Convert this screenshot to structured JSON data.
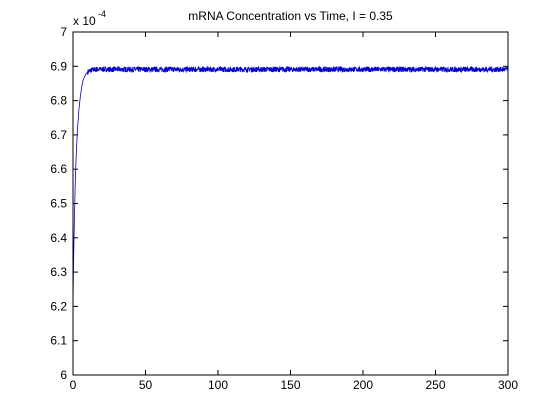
{
  "chart_data": {
    "type": "line",
    "title": "mRNA Concentration vs Time, I = 0.35",
    "xlabel": "",
    "ylabel": "",
    "xlim": [
      0,
      300
    ],
    "ylim": [
      6.0,
      7.0
    ],
    "y_multiplier": {
      "base": "x 10",
      "exponent": "-4"
    },
    "xticks": [
      0,
      50,
      100,
      150,
      200,
      250,
      300
    ],
    "yticks": [
      6,
      6.1,
      6.2,
      6.3,
      6.4,
      6.5,
      6.6,
      6.7,
      6.8,
      6.9,
      7
    ],
    "xtick_labels": [
      "0",
      "50",
      "100",
      "150",
      "200",
      "250",
      "300"
    ],
    "ytick_labels": [
      "6",
      "6.1",
      "6.2",
      "6.3",
      "6.4",
      "6.5",
      "6.6",
      "6.7",
      "6.8",
      "6.9",
      "7"
    ],
    "grid": false,
    "color": "#0000cc",
    "series": [
      {
        "x": [
          0,
          0.3,
          0.6,
          1,
          1.5,
          2,
          3,
          4,
          5,
          6,
          7,
          8,
          9,
          10,
          12,
          14,
          16,
          20,
          300
        ],
        "y": [
          6.2,
          6.3,
          6.38,
          6.46,
          6.55,
          6.62,
          6.71,
          6.77,
          6.81,
          6.84,
          6.86,
          6.87,
          6.878,
          6.883,
          6.888,
          6.89,
          6.891,
          6.891,
          6.891
        ],
        "noise_amplitude": 0.008
      }
    ]
  }
}
